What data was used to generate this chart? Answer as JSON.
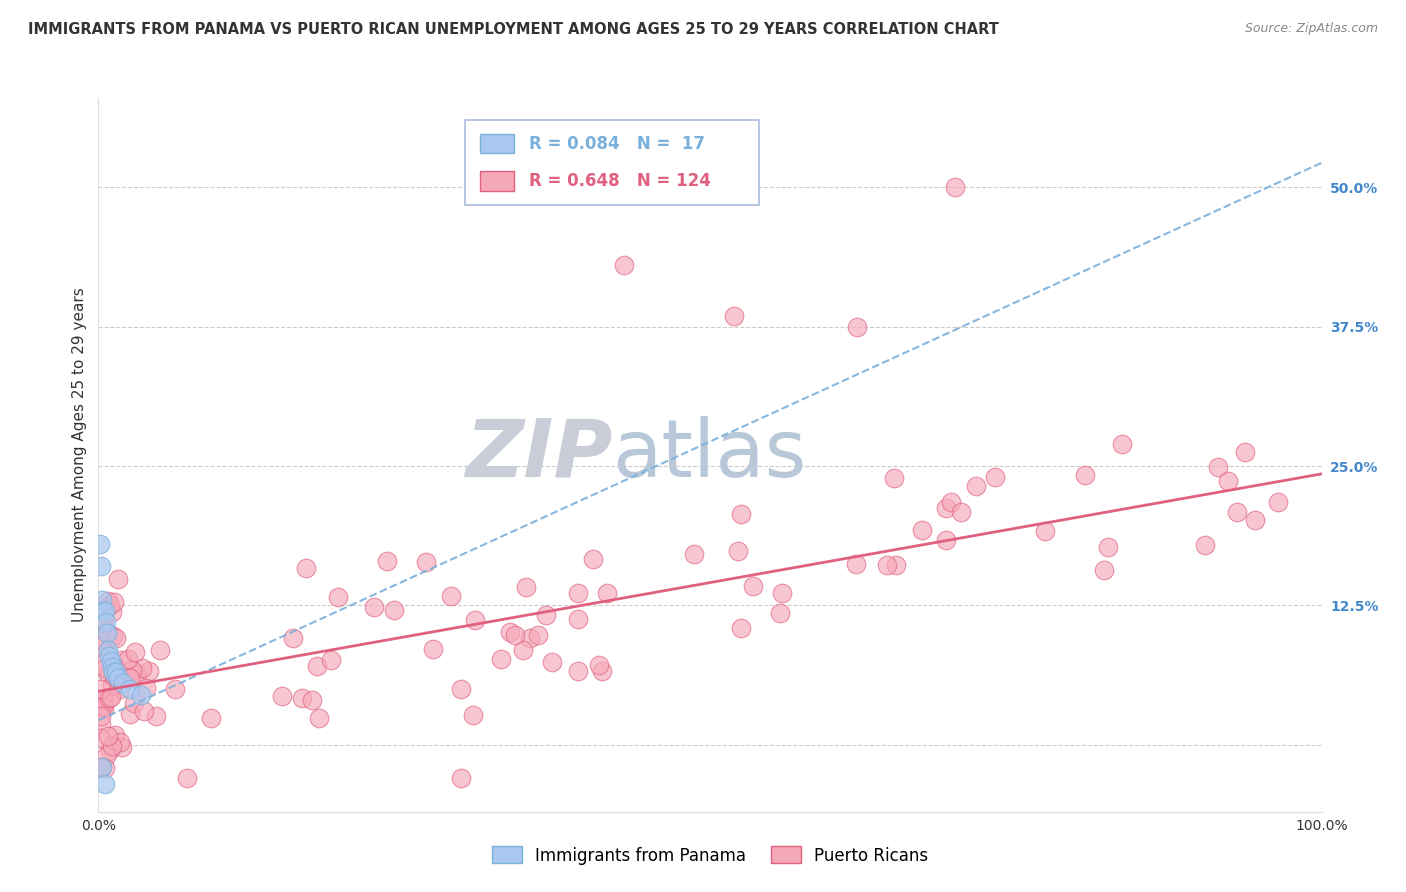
{
  "title": "IMMIGRANTS FROM PANAMA VS PUERTO RICAN UNEMPLOYMENT AMONG AGES 25 TO 29 YEARS CORRELATION CHART",
  "source": "Source: ZipAtlas.com",
  "ylabel": "Unemployment Among Ages 25 to 29 years",
  "xlim": [
    0,
    1.0
  ],
  "ylim": [
    -0.06,
    0.58
  ],
  "yticks_right": [
    0.0,
    0.125,
    0.25,
    0.375,
    0.5
  ],
  "ytick_right_labels": [
    "",
    "12.5%",
    "25.0%",
    "37.5%",
    "50.0%"
  ],
  "grid_color": "#cccccc",
  "background_color": "#ffffff",
  "watermark_zip": "ZIP",
  "watermark_atlas": "atlas",
  "watermark_color_zip": "#c8cdd8",
  "watermark_color_atlas": "#b8c8d8",
  "legend_R1": "R = 0.084",
  "legend_N1": "N =  17",
  "legend_R2": "R = 0.648",
  "legend_N2": "N = 124",
  "series1_color": "#aac8f0",
  "series2_color": "#f5a8b8",
  "trend1_color": "#7ab0dc",
  "trend2_color": "#e06080",
  "trend1_slope": 0.5,
  "trend1_intercept": 0.022,
  "trend2_slope": 0.195,
  "trend2_intercept": 0.048,
  "title_fontsize": 10.5,
  "axis_label_fontsize": 11,
  "tick_fontsize": 10,
  "legend_fontsize": 12
}
